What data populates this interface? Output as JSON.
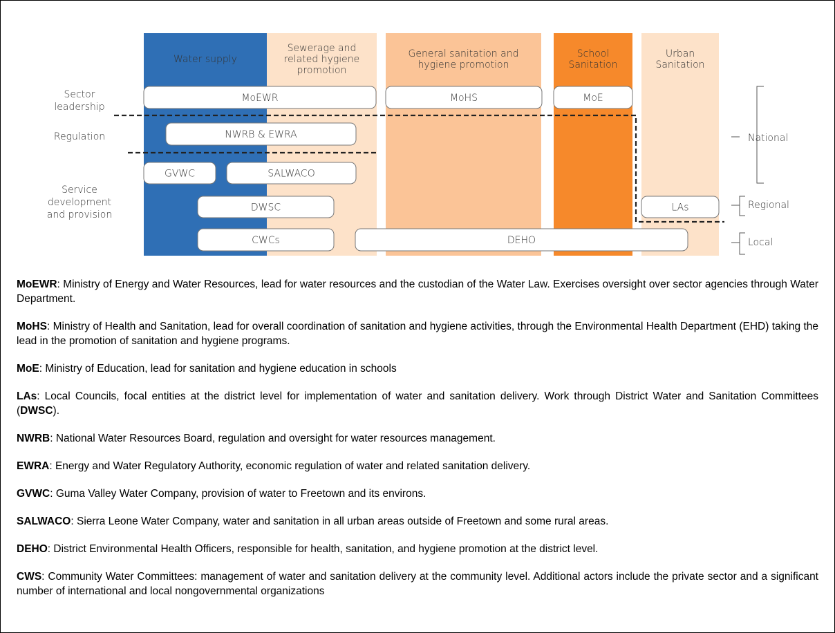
{
  "columns": [
    {
      "header": [
        "Water supply"
      ]
    },
    {
      "header": [
        "Sewerage and",
        "related hygiene",
        "promotion"
      ]
    },
    {
      "header": [
        "General sanitation and",
        "hygiene promotion"
      ]
    },
    {
      "header": [
        "School",
        "Sanitation"
      ]
    },
    {
      "header": [
        "Urban",
        "Sanitation"
      ]
    }
  ],
  "row_labels": [
    {
      "lines": [
        "Sector",
        "leadership"
      ]
    },
    {
      "lines": [
        "Regulation"
      ]
    },
    {
      "lines": [
        "Service",
        "development",
        "and provision"
      ]
    }
  ],
  "boxes": [
    {
      "label": "MoEWR"
    },
    {
      "label": "MoHS"
    },
    {
      "label": "MoE"
    },
    {
      "label": "NWRB & EWRA"
    },
    {
      "label": "GVWC"
    },
    {
      "label": "SALWACO"
    },
    {
      "label": "DWSC"
    },
    {
      "label": "LAs"
    },
    {
      "label": "CWCs"
    },
    {
      "label": "DEHO"
    }
  ],
  "levels": [
    "National",
    "Regional",
    "Local"
  ],
  "definitions": [
    {
      "term": "MoEWR",
      "text": ": Ministry of Energy and Water Resources, lead for water resources and the custodian of the Water Law. Exercises oversight over sector agencies through Water Department."
    },
    {
      "term": "MoHS",
      "text": ": Ministry of Health and Sanitation, lead for overall coordination of sanitation and hygiene activities, through the Environmental Health Department (EHD) taking the lead in the promotion of sanitation and hygiene programs."
    },
    {
      "term": "MoE",
      "text": ": Ministry of Education, lead for sanitation and hygiene education in schools"
    },
    {
      "term": "LAs",
      "text": ": Local Councils, focal entities at the district level for implementation of water and sanitation delivery. Work through District Water and Sanitation Committees (",
      "term2": "DWSC",
      "text2": ")."
    },
    {
      "term": "NWRB",
      "text": ": National Water Resources Board, regulation and oversight for water resources management."
    },
    {
      "term": "EWRA",
      "text": ": Energy and Water Regulatory Authority, economic regulation of water and related sanitation delivery."
    },
    {
      "term": "GVWC",
      "text": ": Guma Valley Water Company, provision of water to Freetown and its environs."
    },
    {
      "term": "SALWACO",
      "text": ": Sierra Leone Water Company, water and sanitation in all urban areas outside of Freetown and some rural areas."
    },
    {
      "term": "DEHO",
      "text": ": District Environmental Health Officers, responsible for health, sanitation, and hygiene promotion at the district level."
    },
    {
      "term": "CWS",
      "text": ": Community Water Committees: management of water and sanitation delivery at the community level. Additional actors include the private sector and a significant number of international and local nongovernmental organizations"
    }
  ]
}
